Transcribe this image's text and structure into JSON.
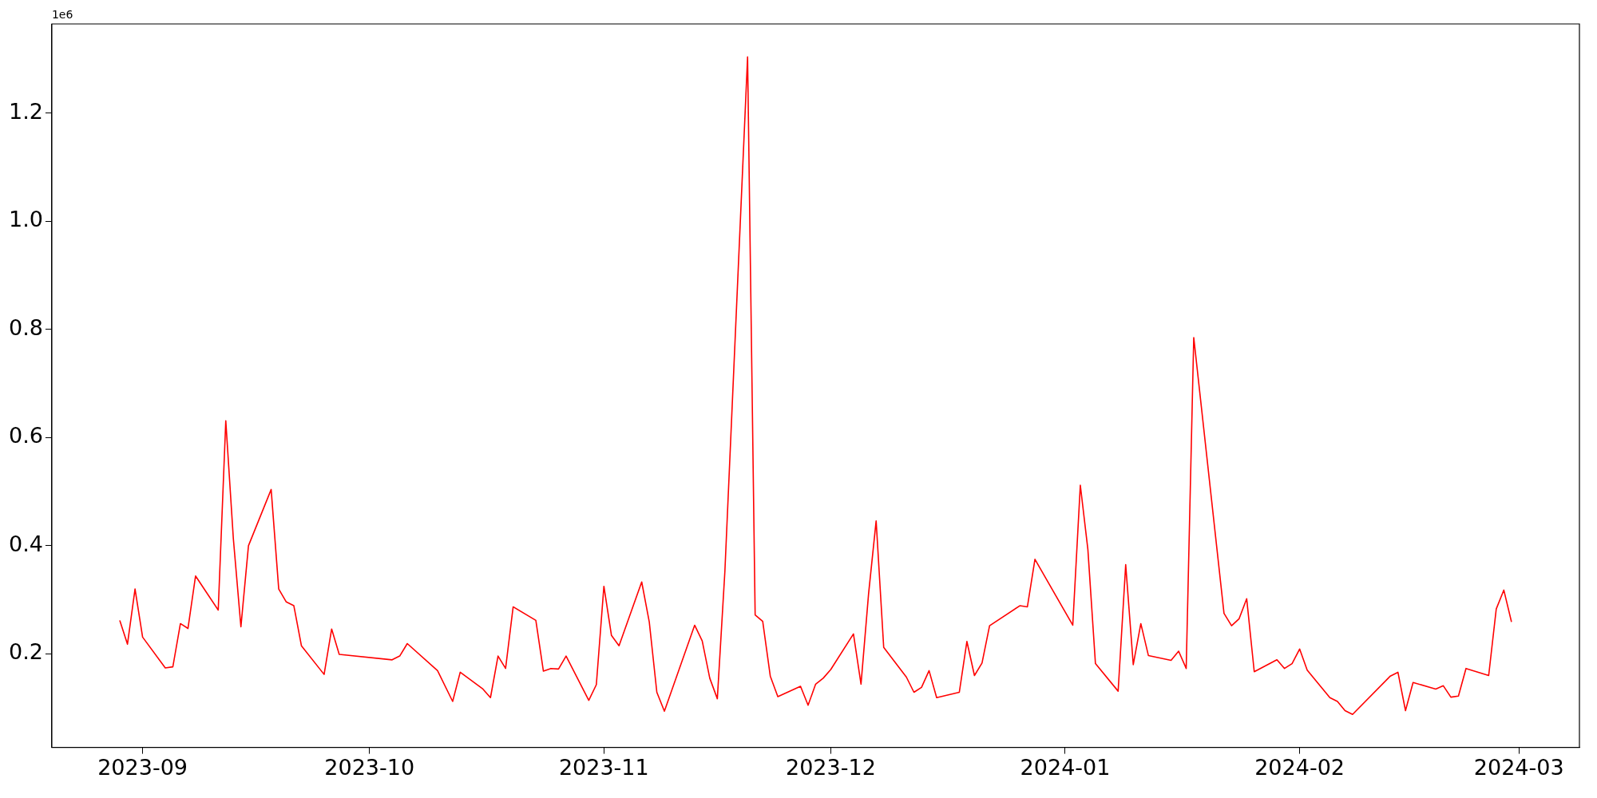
{
  "chart_data": {
    "type": "line",
    "annotations": [
      "1e6"
    ],
    "x": [
      "2023-08-29",
      "2023-08-30",
      "2023-08-31",
      "2023-09-01",
      "2023-09-04",
      "2023-09-05",
      "2023-09-06",
      "2023-09-07",
      "2023-09-08",
      "2023-09-11",
      "2023-09-12",
      "2023-09-13",
      "2023-09-14",
      "2023-09-15",
      "2023-09-18",
      "2023-09-19",
      "2023-09-20",
      "2023-09-21",
      "2023-09-22",
      "2023-09-25",
      "2023-09-26",
      "2023-09-27",
      "2023-10-04",
      "2023-10-05",
      "2023-10-06",
      "2023-10-10",
      "2023-10-12",
      "2023-10-13",
      "2023-10-16",
      "2023-10-17",
      "2023-10-18",
      "2023-10-19",
      "2023-10-20",
      "2023-10-23",
      "2023-10-24",
      "2023-10-25",
      "2023-10-26",
      "2023-10-27",
      "2023-10-30",
      "2023-10-31",
      "2023-11-01",
      "2023-11-02",
      "2023-11-03",
      "2023-11-06",
      "2023-11-07",
      "2023-11-08",
      "2023-11-09",
      "2023-11-13",
      "2023-11-14",
      "2023-11-15",
      "2023-11-16",
      "2023-11-17",
      "2023-11-20",
      "2023-11-21",
      "2023-11-22",
      "2023-11-23",
      "2023-11-24",
      "2023-11-27",
      "2023-11-28",
      "2023-11-29",
      "2023-11-30",
      "2023-12-01",
      "2023-12-04",
      "2023-12-05",
      "2023-12-06",
      "2023-12-07",
      "2023-12-08",
      "2023-12-11",
      "2023-12-12",
      "2023-12-13",
      "2023-12-14",
      "2023-12-15",
      "2023-12-18",
      "2023-12-19",
      "2023-12-20",
      "2023-12-21",
      "2023-12-22",
      "2023-12-26",
      "2023-12-27",
      "2023-12-28",
      "2024-01-02",
      "2024-01-03",
      "2024-01-04",
      "2024-01-05",
      "2024-01-08",
      "2024-01-09",
      "2024-01-10",
      "2024-01-11",
      "2024-01-12",
      "2024-01-15",
      "2024-01-16",
      "2024-01-17",
      "2024-01-18",
      "2024-01-22",
      "2024-01-23",
      "2024-01-24",
      "2024-01-25",
      "2024-01-26",
      "2024-01-29",
      "2024-01-30",
      "2024-01-31",
      "2024-02-01",
      "2024-02-02",
      "2024-02-05",
      "2024-02-06",
      "2024-02-07",
      "2024-02-08",
      "2024-02-13",
      "2024-02-14",
      "2024-02-15",
      "2024-02-16",
      "2024-02-19",
      "2024-02-20",
      "2024-02-21",
      "2024-02-22",
      "2024-02-23",
      "2024-02-26",
      "2024-02-27",
      "2024-02-28",
      "2024-02-29"
    ],
    "series": [
      {
        "color": "#ff0000",
        "values": [
          0.261,
          0.218,
          0.32,
          0.231,
          0.174,
          0.176,
          0.256,
          0.247,
          0.344,
          0.281,
          0.631,
          0.413,
          0.25,
          0.4,
          0.504,
          0.32,
          0.296,
          0.289,
          0.215,
          0.162,
          0.246,
          0.199,
          0.189,
          0.196,
          0.219,
          0.169,
          0.112,
          0.166,
          0.135,
          0.119,
          0.196,
          0.173,
          0.287,
          0.262,
          0.168,
          0.173,
          0.172,
          0.196,
          0.114,
          0.143,
          0.325,
          0.234,
          0.215,
          0.333,
          0.259,
          0.129,
          0.094,
          0.253,
          0.224,
          0.155,
          0.117,
          0.353,
          1.304,
          0.272,
          0.26,
          0.159,
          0.121,
          0.14,
          0.105,
          0.144,
          0.155,
          0.171,
          0.237,
          0.144,
          0.311,
          0.446,
          0.212,
          0.157,
          0.129,
          0.138,
          0.169,
          0.119,
          0.129,
          0.223,
          0.16,
          0.183,
          0.252,
          0.289,
          0.287,
          0.375,
          0.253,
          0.512,
          0.393,
          0.182,
          0.131,
          0.365,
          0.18,
          0.256,
          0.197,
          0.188,
          0.205,
          0.173,
          0.785,
          0.275,
          0.252,
          0.265,
          0.302,
          0.167,
          0.189,
          0.173,
          0.182,
          0.209,
          0.17,
          0.119,
          0.112,
          0.095,
          0.088,
          0.159,
          0.166,
          0.095,
          0.147,
          0.135,
          0.141,
          0.12,
          0.122,
          0.173,
          0.16,
          0.283,
          0.318,
          0.26
        ]
      }
    ],
    "xlim": [
      "2023-08-20",
      "2024-03-09"
    ],
    "xticks": [
      {
        "value": "2023-09-01",
        "label": "2023-09"
      },
      {
        "value": "2023-10-01",
        "label": "2023-10"
      },
      {
        "value": "2023-11-01",
        "label": "2023-11"
      },
      {
        "value": "2023-12-01",
        "label": "2023-12"
      },
      {
        "value": "2024-01-01",
        "label": "2024-01"
      },
      {
        "value": "2024-02-01",
        "label": "2024-02"
      },
      {
        "value": "2024-03-01",
        "label": "2024-03"
      }
    ],
    "ylim": [
      0.027,
      1.365
    ],
    "yticks": [
      0.2,
      0.4,
      0.6,
      0.8,
      {
        "value": 1,
        "label": "1.0"
      },
      1.2
    ],
    "grid": false,
    "legend": false,
    "marker": "none",
    "line_style": "solid"
  }
}
